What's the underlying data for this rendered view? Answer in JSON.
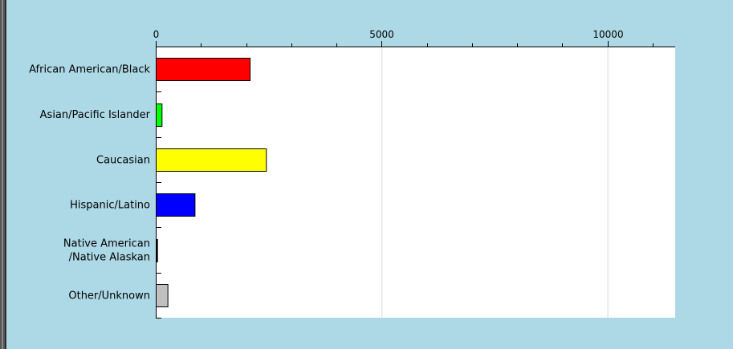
{
  "chart_data": {
    "type": "bar",
    "orientation": "horizontal",
    "categories": [
      [
        "African American/Black"
      ],
      [
        "Asian/Pacific Islander"
      ],
      [
        "Caucasian"
      ],
      [
        "Hispanic/Latino"
      ],
      [
        "Native American",
        "/Native Alaskan"
      ],
      [
        "Other/Unknown"
      ]
    ],
    "values": [
      2080,
      130,
      2440,
      860,
      30,
      260
    ],
    "colors": [
      "#ff0000",
      "#00ff00",
      "#ffff00",
      "#0000ff",
      "#000000",
      "#c0c0c0"
    ],
    "xlim": [
      0,
      11500
    ],
    "x_ticks": [
      0,
      5000,
      10000
    ],
    "x_tick_labels": [
      "0",
      "5000",
      "10000"
    ],
    "minor_tick_step": 1000,
    "axis_position": "top",
    "grid": true,
    "plot_background": "#ffffff",
    "page_background": "#add8e6"
  }
}
